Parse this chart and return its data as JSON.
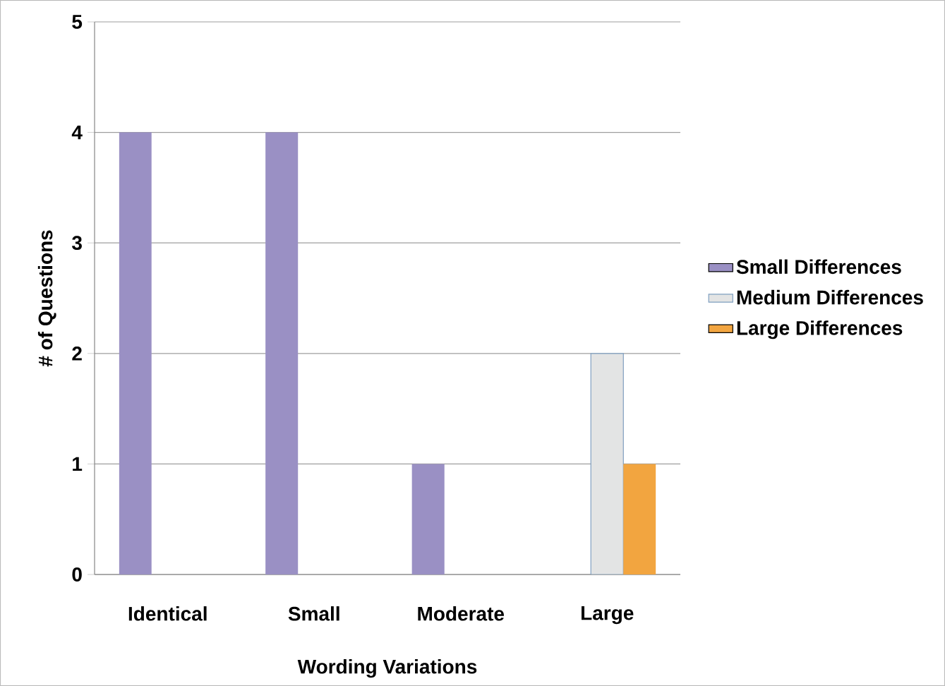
{
  "chart_data": {
    "type": "bar",
    "xlabel": "Wording Variations",
    "ylabel": "# of Questions",
    "categories": [
      "Identical",
      "Small",
      "Moderate",
      "Large"
    ],
    "series": [
      {
        "name": "Small Differences",
        "color": "#9a90c4",
        "values": [
          4,
          4,
          1,
          null
        ]
      },
      {
        "name": "Medium Differences",
        "color": "#e3e4e4",
        "values": [
          null,
          null,
          null,
          2
        ]
      },
      {
        "name": "Large Differences",
        "color": "#f2a540",
        "values": [
          null,
          null,
          null,
          1
        ]
      }
    ],
    "ylim": [
      0,
      5
    ],
    "yticks": [
      0,
      1,
      2,
      3,
      4,
      5
    ],
    "grid": "y",
    "legend": "right"
  }
}
